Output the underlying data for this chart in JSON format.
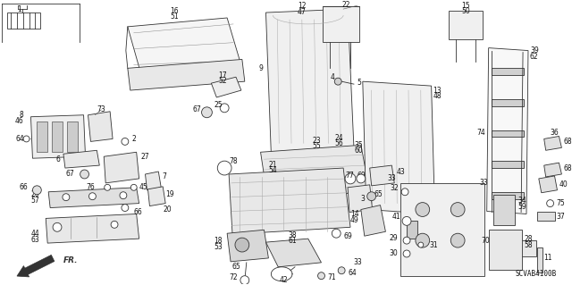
{
  "background_color": "#ffffff",
  "figsize": [
    6.4,
    3.19
  ],
  "dpi": 100,
  "diagram_code": "SCVAB4100B",
  "line_color": "#333333",
  "text_color": "#111111",
  "fill_light": "#f2f2f2",
  "fill_mid": "#e0e0e0",
  "fill_dark": "#cccccc"
}
